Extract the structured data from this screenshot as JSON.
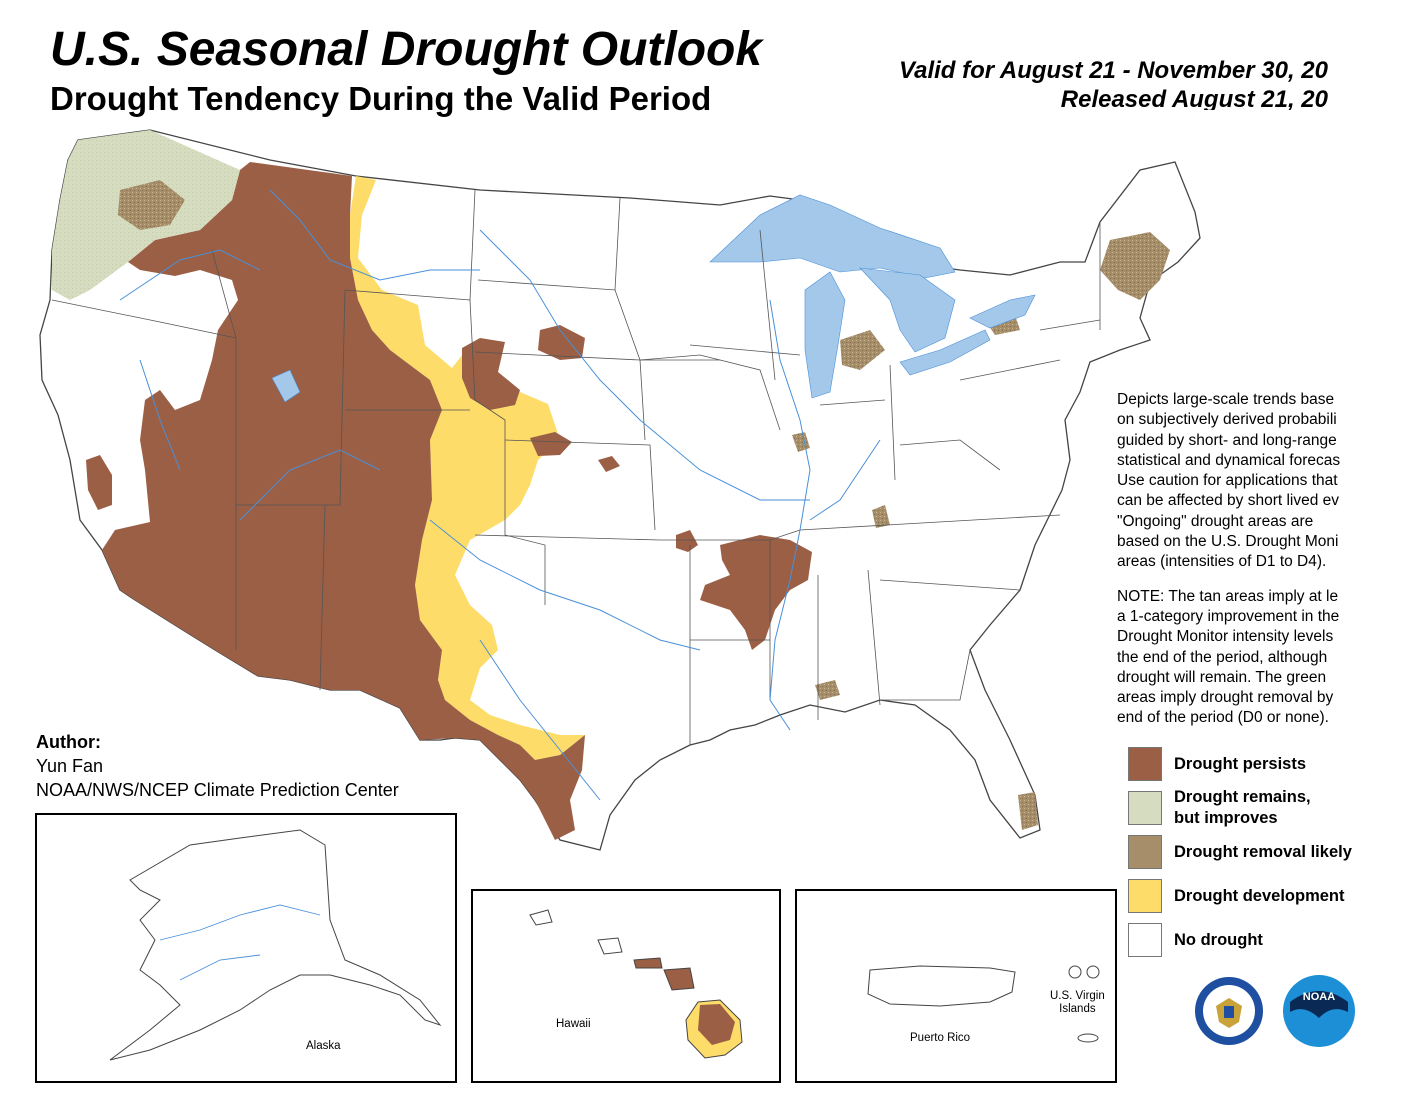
{
  "header": {
    "title": "U.S. Seasonal Drought Outlook",
    "subtitle": "Drought Tendency During the Valid Period",
    "valid_line": "Valid for August 21 - November 30, 20",
    "released_line": "Released August 21, 20"
  },
  "description": {
    "paragraph1_lines": [
      "Depicts large-scale trends base",
      "on subjectively derived probabili",
      "guided by short- and long-range",
      "statistical and dynamical forecas",
      "Use caution for applications that",
      "can be affected by short lived ev",
      "\"Ongoing\" drought areas are",
      "based on the U.S. Drought Moni",
      "areas (intensities of D1 to D4)."
    ],
    "paragraph2_lines": [
      "NOTE: The tan areas imply at le",
      "a 1-category improvement in the",
      "Drought Monitor intensity levels",
      "the end of the period, although",
      "drought will remain. The green",
      "areas imply drought removal by",
      "end of the period (D0 or none)."
    ]
  },
  "legend": [
    {
      "label": "Drought persists",
      "color": "#9b5f45"
    },
    {
      "label": "Drought remains,",
      "label2": "but improves",
      "color": "#d6dcbf"
    },
    {
      "label": "Drought removal likely",
      "color": "#a68e6a"
    },
    {
      "label": "Drought development",
      "color": "#fddc6a"
    },
    {
      "label": "No drought",
      "color": "#ffffff"
    }
  ],
  "author": {
    "heading": "Author:",
    "name": "Yun Fan",
    "org": "NOAA/NWS/NCEP Climate Prediction Center"
  },
  "insets": {
    "alaska": "Alaska",
    "hawaii": "Hawaii",
    "puerto_rico": "Puerto Rico",
    "virgin_islands_line1": "U.S. Virgin",
    "virgin_islands_line2": "Islands"
  },
  "logos": {
    "commerce": "department-of-commerce-seal",
    "noaa_text": "NOAA"
  },
  "colors": {
    "persists": "#9b5f45",
    "improves": "#d6dcbf",
    "removal": "#a68e6a",
    "development": "#fddc6a",
    "water": "#a4c8ea",
    "rivers": "#4a90d9",
    "borders": "#555555"
  }
}
